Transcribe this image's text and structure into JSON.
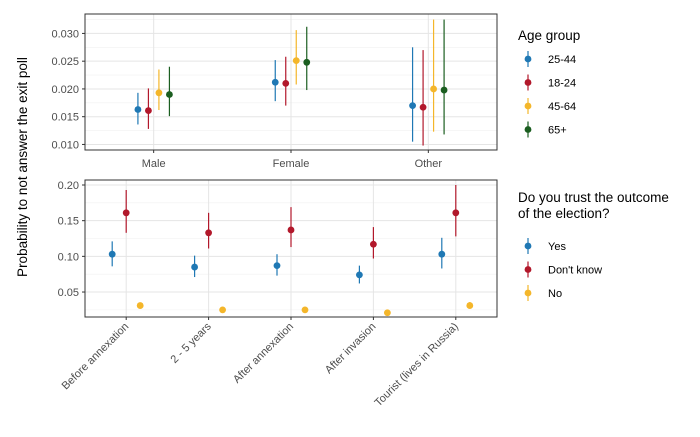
{
  "y_axis_label": "Probability to not answer the exit poll",
  "chart_data": [
    {
      "type": "scatter",
      "subtype": "pointrange",
      "categories": [
        "Male",
        "Female",
        "Other"
      ],
      "ylim": [
        0.009,
        0.0335
      ],
      "yticks": [
        0.01,
        0.015,
        0.02,
        0.025,
        0.03
      ],
      "ytick_labels": [
        "0.010",
        "0.015",
        "0.020",
        "0.025",
        "0.030"
      ],
      "grid": true,
      "legend": {
        "title": "Age group",
        "position": "right"
      },
      "series": [
        {
          "name": "25-44",
          "color": "#1f78b4",
          "estimates": [
            0.0163,
            0.0212,
            0.017
          ],
          "lower": [
            0.0136,
            0.0178,
            0.0105
          ],
          "upper": [
            0.0193,
            0.0252,
            0.0275
          ]
        },
        {
          "name": "18-24",
          "color": "#b2182b",
          "estimates": [
            0.0161,
            0.021,
            0.0167
          ],
          "lower": [
            0.0128,
            0.017,
            0.0098
          ],
          "upper": [
            0.0201,
            0.0258,
            0.027
          ]
        },
        {
          "name": "45-64",
          "color": "#f4b62a",
          "estimates": [
            0.0193,
            0.0251,
            0.02
          ],
          "lower": [
            0.0162,
            0.0208,
            0.0123
          ],
          "upper": [
            0.0235,
            0.0306,
            0.0325
          ]
        },
        {
          "name": "65+",
          "color": "#1b5e20",
          "estimates": [
            0.019,
            0.0248,
            0.0198
          ],
          "lower": [
            0.0151,
            0.0198,
            0.0118
          ],
          "upper": [
            0.024,
            0.0312,
            0.0325
          ]
        }
      ]
    },
    {
      "type": "scatter",
      "subtype": "pointrange",
      "categories": [
        "Before annexation",
        "2 - 5 years",
        "After annexation",
        "After invasion",
        "Tourist (lives in Russia)"
      ],
      "ylim": [
        0.015,
        0.207
      ],
      "yticks": [
        0.05,
        0.1,
        0.15,
        0.2
      ],
      "ytick_labels": [
        "0.05",
        "0.10",
        "0.15",
        "0.20"
      ],
      "grid": true,
      "legend": {
        "title": "Do you trust the outcome of the election?",
        "position": "right"
      },
      "series": [
        {
          "name": "Yes",
          "color": "#1f78b4",
          "estimates": [
            0.103,
            0.085,
            0.087,
            0.074,
            0.103
          ],
          "lower": [
            0.086,
            0.071,
            0.073,
            0.062,
            0.083
          ],
          "upper": [
            0.121,
            0.101,
            0.103,
            0.087,
            0.126
          ]
        },
        {
          "name": "Don't know",
          "color": "#b2182b",
          "estimates": [
            0.161,
            0.133,
            0.137,
            0.117,
            0.161
          ],
          "lower": [
            0.133,
            0.111,
            0.113,
            0.097,
            0.128
          ],
          "upper": [
            0.193,
            0.161,
            0.169,
            0.141,
            0.2
          ]
        },
        {
          "name": "No",
          "color": "#f4b62a",
          "estimates": [
            0.031,
            0.025,
            0.025,
            0.021,
            0.031
          ],
          "lower": [
            0.027,
            0.021,
            0.021,
            0.018,
            0.027
          ],
          "upper": [
            0.035,
            0.029,
            0.029,
            0.024,
            0.036
          ]
        }
      ]
    }
  ]
}
